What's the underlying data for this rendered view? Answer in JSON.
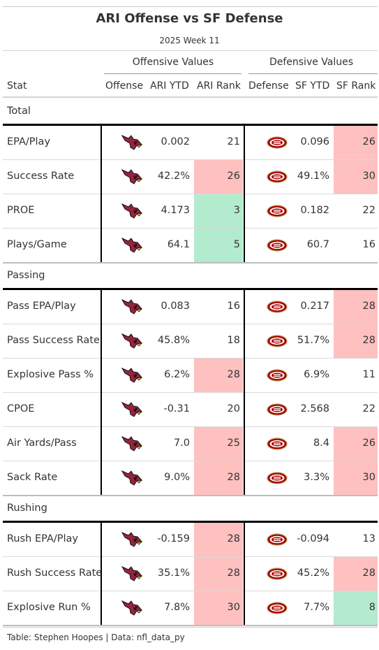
{
  "title": "ARI Offense vs SF Defense",
  "subtitle": "2025 Week 11",
  "spanners": {
    "offense": "Offensive Values",
    "defense": "Defensive Values"
  },
  "columns": {
    "stat": "Stat",
    "offense": "Offense",
    "ari_ytd": "ARI YTD",
    "ari_rank": "ARI Rank",
    "defense": "Defense",
    "sf_ytd": "SF YTD",
    "sf_rank": "SF Rank"
  },
  "colors": {
    "bad": "#ffc0c0",
    "good": "#b3ebcf",
    "ari_red": "#97233f",
    "sf_red": "#aa0000",
    "sf_gold": "#b3995d"
  },
  "icons": {
    "offense": "cardinals-logo-icon",
    "defense": "49ers-logo-icon"
  },
  "groups": [
    {
      "name": "Total",
      "rows": [
        {
          "stat": "EPA/Play",
          "ari_ytd": "0.002",
          "ari_rank": "21",
          "sf_ytd": "0.096",
          "sf_rank": "26",
          "ari_rank_color": "none",
          "sf_rank_color": "bad"
        },
        {
          "stat": "Success Rate",
          "ari_ytd": "42.2%",
          "ari_rank": "26",
          "sf_ytd": "49.1%",
          "sf_rank": "30",
          "ari_rank_color": "bad",
          "sf_rank_color": "bad"
        },
        {
          "stat": "PROE",
          "ari_ytd": "4.173",
          "ari_rank": "3",
          "sf_ytd": "0.182",
          "sf_rank": "22",
          "ari_rank_color": "good",
          "sf_rank_color": "none"
        },
        {
          "stat": "Plays/Game",
          "ari_ytd": "64.1",
          "ari_rank": "5",
          "sf_ytd": "60.7",
          "sf_rank": "16",
          "ari_rank_color": "good",
          "sf_rank_color": "none"
        }
      ]
    },
    {
      "name": "Passing",
      "rows": [
        {
          "stat": "Pass EPA/Play",
          "ari_ytd": "0.083",
          "ari_rank": "16",
          "sf_ytd": "0.217",
          "sf_rank": "28",
          "ari_rank_color": "none",
          "sf_rank_color": "bad"
        },
        {
          "stat": "Pass Success Rate",
          "ari_ytd": "45.8%",
          "ari_rank": "18",
          "sf_ytd": "51.7%",
          "sf_rank": "28",
          "ari_rank_color": "none",
          "sf_rank_color": "bad"
        },
        {
          "stat": "Explosive Pass %",
          "ari_ytd": "6.2%",
          "ari_rank": "28",
          "sf_ytd": "6.9%",
          "sf_rank": "11",
          "ari_rank_color": "bad",
          "sf_rank_color": "none"
        },
        {
          "stat": "CPOE",
          "ari_ytd": "-0.31",
          "ari_rank": "20",
          "sf_ytd": "2.568",
          "sf_rank": "22",
          "ari_rank_color": "none",
          "sf_rank_color": "none"
        },
        {
          "stat": "Air Yards/Pass",
          "ari_ytd": "7.0",
          "ari_rank": "25",
          "sf_ytd": "8.4",
          "sf_rank": "26",
          "ari_rank_color": "bad",
          "sf_rank_color": "bad"
        },
        {
          "stat": "Sack Rate",
          "ari_ytd": "9.0%",
          "ari_rank": "28",
          "sf_ytd": "3.3%",
          "sf_rank": "30",
          "ari_rank_color": "bad",
          "sf_rank_color": "bad"
        }
      ]
    },
    {
      "name": "Rushing",
      "rows": [
        {
          "stat": "Rush EPA/Play",
          "ari_ytd": "-0.159",
          "ari_rank": "28",
          "sf_ytd": "-0.094",
          "sf_rank": "13",
          "ari_rank_color": "bad",
          "sf_rank_color": "none"
        },
        {
          "stat": "Rush Success Rate",
          "ari_ytd": "35.1%",
          "ari_rank": "28",
          "sf_ytd": "45.2%",
          "sf_rank": "28",
          "ari_rank_color": "bad",
          "sf_rank_color": "bad"
        },
        {
          "stat": "Explosive Run %",
          "ari_ytd": "7.8%",
          "ari_rank": "30",
          "sf_ytd": "7.7%",
          "sf_rank": "8",
          "ari_rank_color": "bad",
          "sf_rank_color": "good"
        }
      ]
    }
  ],
  "footer": "Table: Stephen Hoopes | Data: nfl_data_py"
}
